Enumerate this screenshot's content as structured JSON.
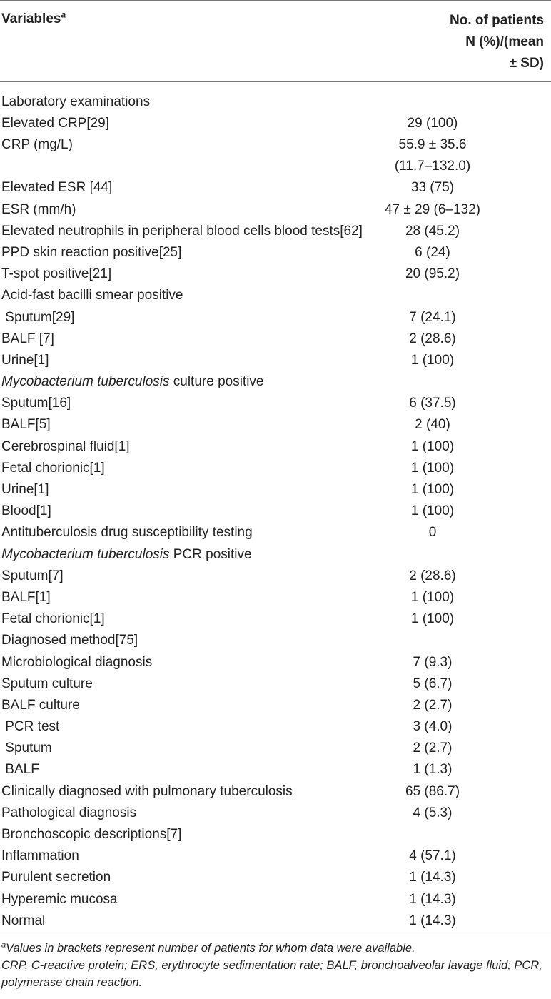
{
  "header": {
    "variables": "Variables",
    "variables_sup": "a",
    "value_line1": "No. of patients",
    "value_line2": "N (%)/(mean",
    "value_line3": "± SD)"
  },
  "rows": [
    {
      "label": "Laboratory examinations",
      "value": ""
    },
    {
      "label": "Elevated CRP[29]",
      "value": "29 (100)"
    },
    {
      "label": "CRP (mg/L)",
      "value": "55.9 ± 35.6",
      "value2": "(11.7–132.0)"
    },
    {
      "label": "Elevated ESR [44]",
      "value": "33 (75)"
    },
    {
      "label": "ESR (mm/h)",
      "value": "47 ± 29 (6–132)"
    },
    {
      "label": "Elevated neutrophils in peripheral blood cells blood tests[62]",
      "value": "28 (45.2)"
    },
    {
      "label": "PPD skin reaction positive[25]",
      "value": "6 (24)"
    },
    {
      "label": "T-spot positive[21]",
      "value": "20 (95.2)"
    },
    {
      "label": "Acid-fast bacilli smear positive",
      "value": ""
    },
    {
      "label": " Sputum[29]",
      "value": "7 (24.1)"
    },
    {
      "label": "BALF [7]",
      "value": "2 (28.6)"
    },
    {
      "label": "Urine[1]",
      "value": "1 (100)"
    },
    {
      "label_italic": "Mycobacterium tuberculosis",
      "label": " culture positive",
      "value": ""
    },
    {
      "label": "Sputum[16]",
      "value": "6 (37.5)"
    },
    {
      "label": "BALF[5]",
      "value": "2 (40)"
    },
    {
      "label": "Cerebrospinal fluid[1]",
      "value": "1 (100)"
    },
    {
      "label": "Fetal chorionic[1]",
      "value": "1 (100)"
    },
    {
      "label": "Urine[1]",
      "value": "1 (100)"
    },
    {
      "label": "Blood[1]",
      "value": "1 (100)"
    },
    {
      "label": "Antituberculosis drug susceptibility testing",
      "value": "0"
    },
    {
      "label_italic": "Mycobacterium tuberculosis",
      "label": " PCR positive",
      "value": ""
    },
    {
      "label": "Sputum[7]",
      "value": "2 (28.6)"
    },
    {
      "label": "BALF[1]",
      "value": "1 (100)"
    },
    {
      "label": "Fetal chorionic[1]",
      "value": "1 (100)"
    },
    {
      "label": "Diagnosed method[75]",
      "value": ""
    },
    {
      "label": "Microbiological diagnosis",
      "value": "7 (9.3)"
    },
    {
      "label": "Sputum culture",
      "value": "5 (6.7)"
    },
    {
      "label": "BALF culture",
      "value": "2 (2.7)"
    },
    {
      "label": " PCR test",
      "value": "3 (4.0)"
    },
    {
      "label": " Sputum",
      "value": "2 (2.7)"
    },
    {
      "label": " BALF",
      "value": "1 (1.3)"
    },
    {
      "label": "Clinically diagnosed with pulmonary tuberculosis",
      "value": "65 (86.7)"
    },
    {
      "label": "Pathological diagnosis",
      "value": "4 (5.3)"
    },
    {
      "label": "Bronchoscopic descriptions[7]",
      "value": ""
    },
    {
      "label": "Inflammation",
      "value": "4 (57.1)"
    },
    {
      "label": "Purulent secretion",
      "value": "1 (14.3)"
    },
    {
      "label": "Hyperemic mucosa",
      "value": "1 (14.3)"
    },
    {
      "label": "Normal",
      "value": "1 (14.3)"
    }
  ],
  "footnotes": {
    "note1_sup": "a",
    "note1": "Values in brackets represent number of patients for whom data were available.",
    "note2": "CRP, C-reactive protein; ERS, erythrocyte sedimentation rate; BALF, bronchoalveolar lavage fluid; PCR, polymerase chain reaction."
  }
}
